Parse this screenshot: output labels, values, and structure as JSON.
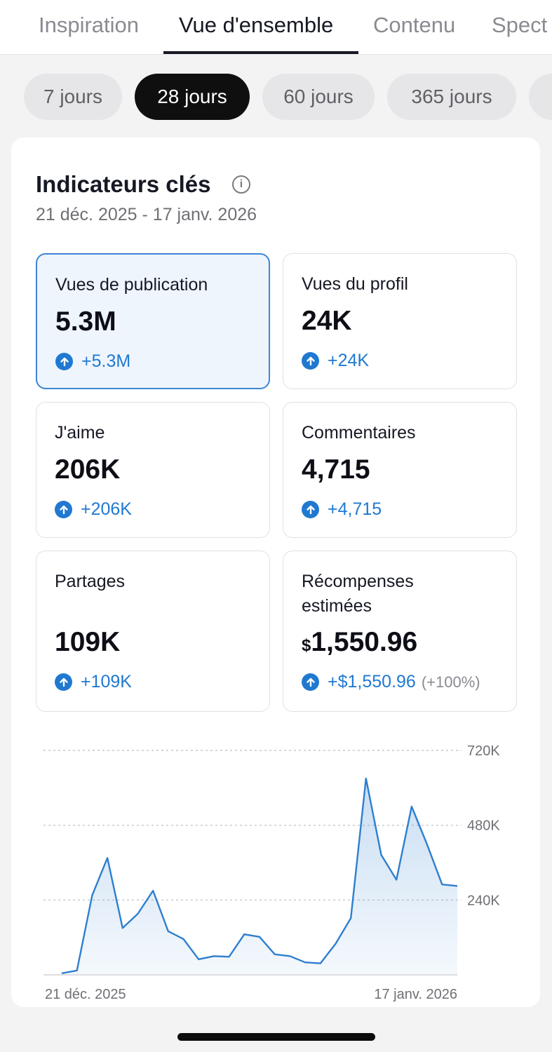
{
  "top_tabs": [
    "Inspiration",
    "Vue d'ensemble",
    "Contenu",
    "Spect"
  ],
  "active_top_tab": "Vue d'ensemble",
  "periods": [
    "7 jours",
    "28 jours",
    "60 jours",
    "365 jours"
  ],
  "active_period": "28 jours",
  "key_metrics": {
    "title": "Indicateurs clés",
    "date_range": "21 déc. 2025 - 17 janv. 2026",
    "cards": [
      {
        "label": "Vues de publication",
        "value": "5.3M",
        "delta": "+5.3M",
        "selected": true
      },
      {
        "label": "Vues du profil",
        "value": "24K",
        "delta": "+24K",
        "selected": false
      },
      {
        "label": "J'aime",
        "value": "206K",
        "delta": "+206K",
        "selected": false
      },
      {
        "label": "Commentaires",
        "value": "4,715",
        "delta": "+4,715",
        "selected": false
      },
      {
        "label": "Partages",
        "value": "109K",
        "delta": "+109K",
        "selected": false
      },
      {
        "label_line1": "Récompenses",
        "label_line2": "estimées",
        "currency": "$",
        "value": "1,550.96",
        "delta": "+$1,550.96",
        "delta_pct": "(+100%)",
        "selected": false
      }
    ]
  },
  "chart_data": {
    "type": "area",
    "x_start_label": "21 déc. 2025",
    "x_end_label": "17 janv. 2026",
    "y_tick_labels": [
      "720K",
      "480K",
      "240K"
    ],
    "y_ticks": [
      720000,
      480000,
      240000
    ],
    "ylim": [
      0,
      720000
    ],
    "grid": true,
    "series_color": "#2e7fcf",
    "values": [
      5000,
      14000,
      255000,
      375000,
      150000,
      196000,
      270000,
      140000,
      115000,
      50000,
      60000,
      58000,
      130000,
      122000,
      66000,
      60000,
      40000,
      37000,
      100000,
      182000,
      630000,
      385000,
      305000,
      540000,
      420000,
      290000,
      285000
    ]
  },
  "colors": {
    "accent_blue": "#2079d0",
    "selected_card_bg": "#eef5fd",
    "active_pill_bg": "#0f0f0f"
  }
}
